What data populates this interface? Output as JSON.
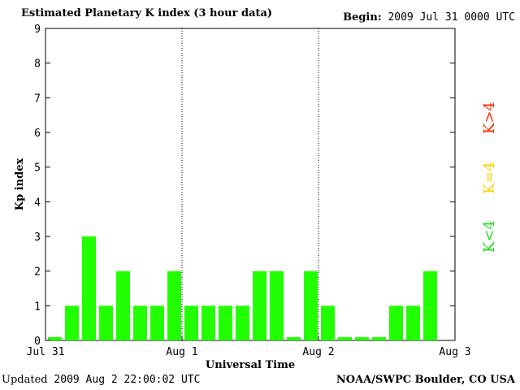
{
  "header": {
    "title": "Estimated Planetary K index (3 hour data)",
    "begin_label": "Begin:",
    "begin_value": "2009 Jul 31 0000 UTC"
  },
  "footer": {
    "updated_label": "Updated",
    "updated_value": "2009 Aug  2 22:00:02 UTC",
    "source": "NOAA/SWPC Boulder, CO USA"
  },
  "legend": [
    {
      "label": "K>4",
      "color": "#ff2a00"
    },
    {
      "label": "K=4",
      "color": "#ffd200"
    },
    {
      "label": "K<4",
      "color": "#22dd22"
    }
  ],
  "chart_data": {
    "type": "bar",
    "title": "Estimated Planetary K index (3 hour data)",
    "ylabel": "Kp index",
    "xlabel": "Universal Time",
    "ylim": [
      0,
      9
    ],
    "yticks": [
      0,
      1,
      2,
      3,
      4,
      5,
      6,
      7,
      8,
      9
    ],
    "x_tick_labels": [
      "Jul 31",
      "Aug 1",
      "Aug 2",
      "Aug 3"
    ],
    "interval_hours": 3,
    "values": [
      0,
      1,
      3,
      1,
      2,
      1,
      1,
      2,
      1,
      1,
      1,
      1,
      2,
      2,
      0,
      2,
      1,
      0,
      0,
      0,
      1,
      1,
      2
    ],
    "bar_color": "#22ff00",
    "day_separators": "dotted"
  }
}
